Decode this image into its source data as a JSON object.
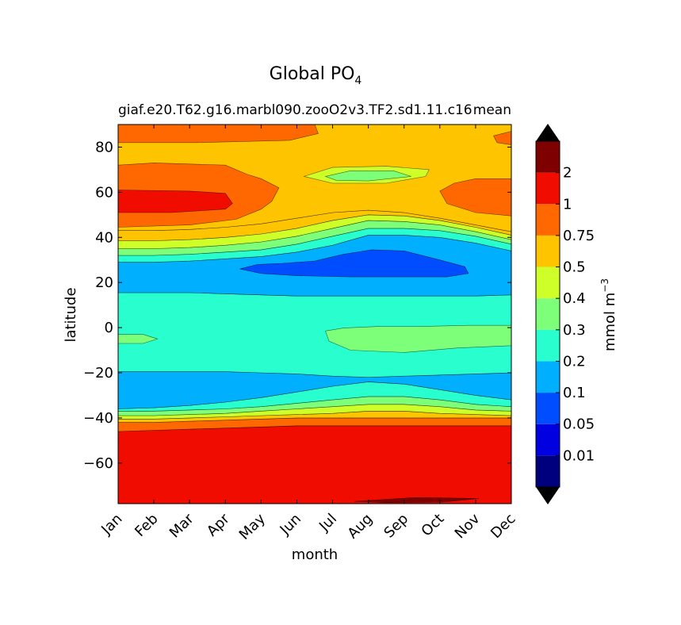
{
  "chart_data": {
    "type": "heatmap",
    "title": "Global PO",
    "title_subscript": "4",
    "subtitle_left": "giaf.e20.T62.g16.marbl090.zooO2v3.TF2.sd1.11.c16",
    "subtitle_right": "mean",
    "xlabel": "month",
    "ylabel": "latitude",
    "x_ticks": [
      "Jan",
      "Feb",
      "Mar",
      "Apr",
      "May",
      "Jun",
      "Jul",
      "Aug",
      "Sep",
      "Oct",
      "Nov",
      "Dec"
    ],
    "y_ticks": [
      80,
      60,
      40,
      20,
      0,
      -20,
      -40,
      -60
    ],
    "ylim": [
      -78,
      90
    ],
    "xlim": [
      1,
      12
    ],
    "colorbar": {
      "label": "mmol m",
      "label_exponent": "−3",
      "extend": "both",
      "tick_labels": [
        "0.01",
        "0.05",
        "0.1",
        "0.2",
        "0.3",
        "0.4",
        "0.5",
        "0.75",
        "1",
        "2"
      ],
      "colors": [
        "#00007f",
        "#0000e0",
        "#004cff",
        "#00b0ff",
        "#29ffce",
        "#7dff7a",
        "#ceff29",
        "#ffc400",
        "#ff6800",
        "#f10c00",
        "#7f0000"
      ]
    },
    "fields": {
      "months": [
        1,
        2,
        3,
        4,
        5,
        6,
        7,
        8,
        9,
        10,
        11,
        12
      ],
      "band_boundaries_note": "latitudes where the PO4 level changes, per month (lowest band first)",
      "south_ocean_1_to_2": [
        -46,
        -45.5,
        -45,
        -44.5,
        -44,
        -43.5,
        -43.5,
        -43.5,
        -43.5,
        -43.5,
        -43.5,
        -43.5
      ],
      "south_ocean_075_to_1": [
        -42,
        -42,
        -41.5,
        -41,
        -40.5,
        -40,
        -40,
        -40,
        -40,
        -40,
        -40,
        -40
      ],
      "south_ocean_05_to_075": [
        -40.5,
        -40.5,
        -40,
        -39.5,
        -39,
        -38.5,
        -38,
        -37,
        -37,
        -38,
        -38.5,
        -39
      ],
      "south_ocean_04_to_05": [
        -39,
        -39,
        -38.5,
        -38,
        -37,
        -36,
        -35,
        -34,
        -34,
        -35,
        -36.5,
        -37
      ],
      "south_ocean_03_to_04": [
        -37,
        -37,
        -36.5,
        -36,
        -35,
        -33.5,
        -32,
        -30.5,
        -30.5,
        -32,
        -34,
        -35
      ],
      "south_ocean_02_to_03": [
        -36,
        -35.5,
        -34.5,
        -33,
        -31,
        -28.5,
        -26,
        -24,
        -25,
        -27.5,
        -30,
        -32
      ],
      "south_02_to_01_boundary": [
        -19.5,
        -19.5,
        -19.5,
        -19.5,
        -20,
        -20.5,
        -21.5,
        -22,
        -21.5,
        -21,
        -20.5,
        -20
      ],
      "north_02_to_01_boundary": [
        15.5,
        15.5,
        15.5,
        15,
        14.5,
        14,
        14,
        14,
        14,
        14,
        14,
        14.5
      ],
      "north_01_to_02": [
        29,
        29,
        29.5,
        30.5,
        31.5,
        33.5,
        36.5,
        41,
        41,
        40,
        37.5,
        34
      ],
      "north_02_to_03": [
        32,
        32,
        32.5,
        33.5,
        34.5,
        37,
        40.5,
        44,
        44,
        43,
        40.5,
        37
      ],
      "north_03_to_04": [
        35,
        35,
        35.5,
        36.5,
        38,
        40.5,
        44,
        47.5,
        47,
        45.5,
        42.5,
        39
      ],
      "north_04_to_05": [
        38.5,
        38.5,
        39,
        40,
        41.5,
        44,
        47.5,
        50,
        49.5,
        47.5,
        44.5,
        41
      ],
      "north_05_to_075": [
        43,
        43,
        43.5,
        44.5,
        46,
        48.5,
        51,
        52,
        51,
        48.5,
        45.5,
        42.5
      ]
    }
  }
}
